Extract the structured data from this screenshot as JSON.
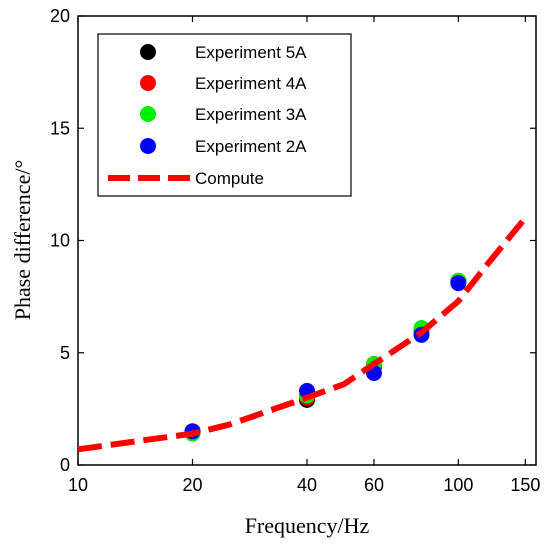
{
  "chart_data": {
    "type": "scatter",
    "xlabel": "Frequency/Hz",
    "ylabel": "Phase difference/°",
    "xscale": "log",
    "xlim": [
      10,
      160
    ],
    "ylim": [
      0,
      20
    ],
    "xticks": [
      10,
      20,
      40,
      60,
      100,
      150
    ],
    "yticks": [
      0,
      5,
      10,
      15,
      20
    ],
    "xtick_labels": [
      "10",
      "20",
      "40",
      "60",
      "100",
      "150"
    ],
    "ytick_labels": [
      "0",
      "5",
      "10",
      "15",
      "20"
    ],
    "grid": false,
    "legend_position": "top-left",
    "series": [
      {
        "name": "Experiment 5A",
        "kind": "markers",
        "color": "#000000",
        "points": [
          [
            20,
            1.5
          ],
          [
            40,
            2.9
          ],
          [
            60,
            4.4
          ],
          [
            80,
            6.0
          ],
          [
            100,
            8.2
          ]
        ]
      },
      {
        "name": "Experiment 4A",
        "kind": "markers",
        "color": "#ff0000",
        "points": [
          [
            20,
            1.5
          ],
          [
            40,
            3.0
          ],
          [
            60,
            4.5
          ],
          [
            80,
            6.0
          ],
          [
            100,
            8.2
          ]
        ]
      },
      {
        "name": "Experiment 3A",
        "kind": "markers",
        "color": "#00ee00",
        "points": [
          [
            20,
            1.4
          ],
          [
            40,
            3.1
          ],
          [
            60,
            4.5
          ],
          [
            80,
            6.1
          ],
          [
            100,
            8.2
          ]
        ]
      },
      {
        "name": "Experiment 2A",
        "kind": "markers",
        "color": "#0000ff",
        "points": [
          [
            20,
            1.5
          ],
          [
            40,
            3.3
          ],
          [
            60,
            4.1
          ],
          [
            80,
            5.8
          ],
          [
            100,
            8.1
          ]
        ]
      },
      {
        "name": "Compute",
        "kind": "dashed-line",
        "color": "#ff0000",
        "points": [
          [
            10,
            0.7
          ],
          [
            20,
            1.4
          ],
          [
            25,
            1.8
          ],
          [
            40,
            3.0
          ],
          [
            50,
            3.6
          ],
          [
            60,
            4.5
          ],
          [
            80,
            5.9
          ],
          [
            100,
            7.3
          ],
          [
            120,
            9.0
          ],
          [
            150,
            11.0
          ]
        ]
      }
    ]
  }
}
